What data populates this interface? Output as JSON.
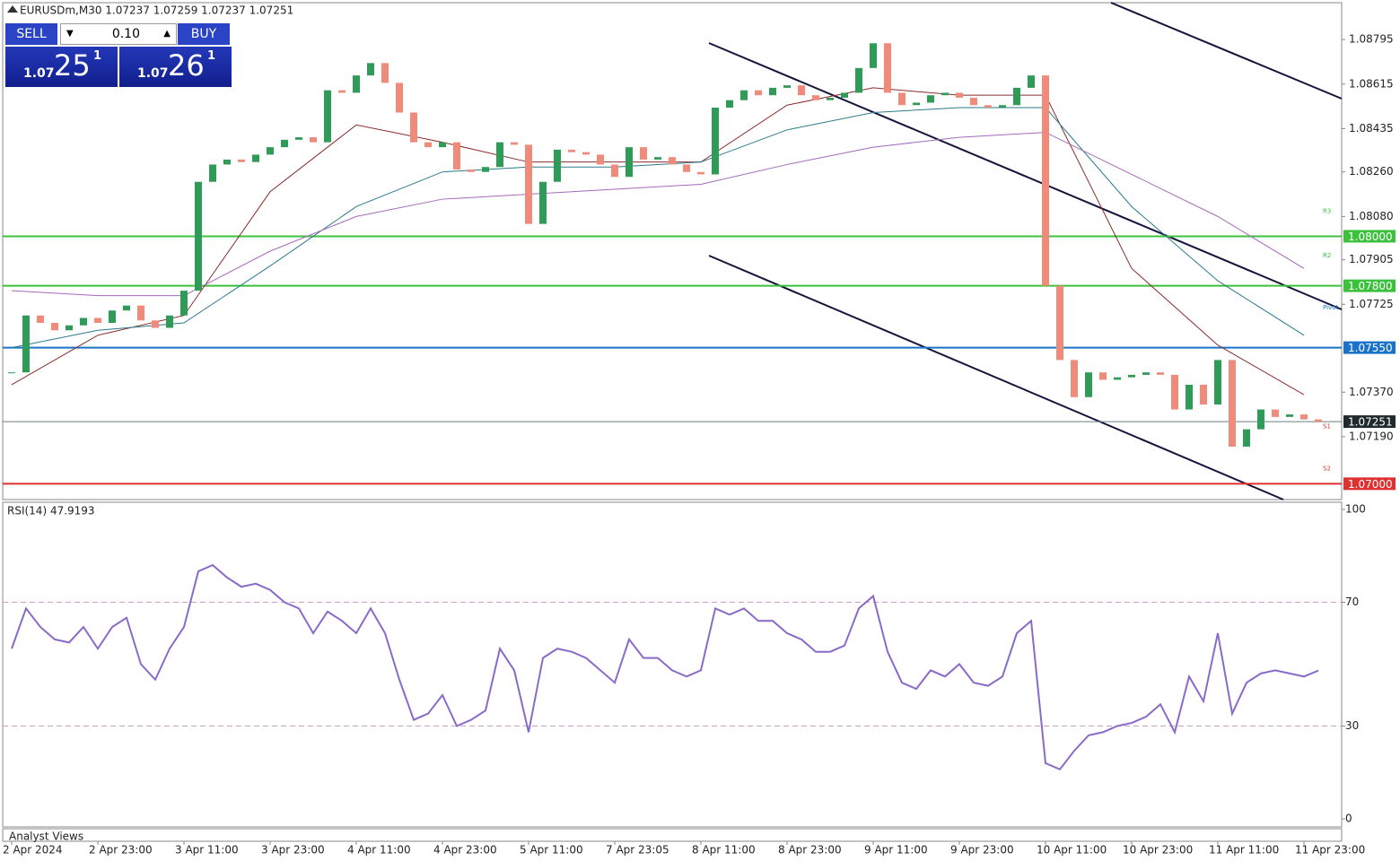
{
  "header": {
    "symbol_info": "EURUSDm,M30  1.07237 1.07259 1.07237 1.07251"
  },
  "trade_panel": {
    "sell": "SELL",
    "buy": "BUY",
    "lot": "0.10",
    "sell_price": {
      "small": "1.07",
      "big": "25",
      "sup": "1"
    },
    "buy_price": {
      "small": "1.07",
      "big": "26",
      "sup": "1"
    }
  },
  "footer": {
    "panel": "Analyst Views"
  },
  "chart_data": [
    {
      "type": "candlestick",
      "up_color": "#2e9c57",
      "down_color": "#f08a7a",
      "ylim": [
        1.06936,
        1.08944
      ],
      "yticks": [
        1.08795,
        1.08615,
        1.08435,
        {
          "value": 1.0826,
          "label": "1.08260"
        },
        {
          "value": 1.0808,
          "label": "1.08080"
        },
        1.07905,
        1.07725,
        {
          "value": 1.0737,
          "label": "1.07370"
        },
        {
          "value": 1.0719,
          "label": "1.07190"
        }
      ],
      "xticks": [
        {
          "value": 0,
          "label": "2 Apr 2024"
        },
        {
          "value": 6,
          "label": "2 Apr 23:00"
        },
        {
          "value": 12,
          "label": "3 Apr 11:00"
        },
        {
          "value": 18,
          "label": "3 Apr 23:00"
        },
        {
          "value": 24,
          "label": "4 Apr 11:00"
        },
        {
          "value": 30,
          "label": "4 Apr 23:00"
        },
        {
          "value": 36,
          "label": "5 Apr 11:00"
        },
        {
          "value": 42,
          "label": "7 Apr 23:05"
        },
        {
          "value": 48,
          "label": "8 Apr 11:00"
        },
        {
          "value": 54,
          "label": "8 Apr 23:00"
        },
        {
          "value": 60,
          "label": "9 Apr 11:00"
        },
        {
          "value": 66,
          "label": "9 Apr 23:00"
        },
        {
          "value": 72,
          "label": "10 Apr 11:00"
        },
        {
          "value": 78,
          "label": "10 Apr 23:00"
        },
        {
          "value": 84,
          "label": "11 Apr 11:00"
        },
        {
          "value": 90,
          "label": "11 Apr 23:00"
        }
      ],
      "close": [
        1.0745,
        1.0768,
        1.0765,
        1.0762,
        1.0764,
        1.0767,
        1.0765,
        1.077,
        1.0772,
        1.0766,
        1.0763,
        1.0768,
        1.0778,
        1.0822,
        1.0829,
        1.0831,
        1.083,
        1.0833,
        1.0836,
        1.0839,
        1.084,
        1.0838,
        1.0859,
        1.0858,
        1.0865,
        1.087,
        1.0862,
        1.085,
        1.0838,
        1.0836,
        1.0838,
        1.0827,
        1.0826,
        1.0828,
        1.0838,
        1.0837,
        1.0805,
        1.0822,
        1.0835,
        1.0834,
        1.0833,
        1.0829,
        1.0824,
        1.0836,
        1.0831,
        1.0832,
        1.0829,
        1.0826,
        1.0825,
        1.0852,
        1.0855,
        1.0859,
        1.0857,
        1.086,
        1.0861,
        1.0857,
        1.0855,
        1.0856,
        1.0858,
        1.0868,
        1.0878,
        1.0858,
        1.0853,
        1.0854,
        1.0857,
        1.0858,
        1.0856,
        1.0853,
        1.0852,
        1.0853,
        1.086,
        1.0865,
        1.078,
        1.075,
        1.0735,
        1.0745,
        1.0742,
        1.0743,
        1.0744,
        1.0745,
        1.0744,
        1.073,
        1.074,
        1.0732,
        1.075,
        1.0715,
        1.0722,
        1.073,
        1.0727,
        1.0728,
        1.0726,
        1.07251
      ],
      "series": [
        {
          "color": "#8b2c2c",
          "x": [
            0,
            6,
            12,
            18,
            24,
            30,
            36,
            42,
            48,
            54,
            60,
            66,
            72,
            78,
            84,
            90
          ],
          "values": [
            1.074,
            1.076,
            1.0768,
            1.0818,
            1.0845,
            1.0838,
            1.083,
            1.083,
            1.083,
            1.0853,
            1.086,
            1.0857,
            1.0857,
            1.0787,
            1.0756,
            1.0736
          ]
        },
        {
          "color": "#2b7a8c",
          "x": [
            0,
            6,
            12,
            18,
            24,
            30,
            36,
            42,
            48,
            54,
            60,
            66,
            72,
            78,
            84,
            90
          ],
          "values": [
            1.0755,
            1.0762,
            1.0765,
            1.0788,
            1.0812,
            1.0826,
            1.0828,
            1.0828,
            1.083,
            1.0843,
            1.085,
            1.0852,
            1.0852,
            1.0812,
            1.0782,
            1.076
          ]
        },
        {
          "color": "#a569bd",
          "x": [
            0,
            6,
            12,
            18,
            24,
            30,
            36,
            42,
            48,
            54,
            60,
            66,
            72,
            78,
            84,
            90
          ],
          "values": [
            1.0778,
            1.0776,
            1.0776,
            1.0794,
            1.0808,
            1.0815,
            1.0817,
            1.0819,
            1.0821,
            1.0829,
            1.0836,
            1.084,
            1.0842,
            1.0825,
            1.0808,
            1.0787
          ]
        }
      ],
      "levels": [
        {
          "value": 1.08,
          "label": "1.08000",
          "color": "#3cc13c"
        },
        {
          "value": 1.078,
          "label": "1.07800",
          "color": "#3cc13c"
        },
        {
          "value": 1.0755,
          "label": "1.07550",
          "color": "#1a73c8"
        },
        {
          "value": 1.07251,
          "color": "#6b7f82",
          "tag_color": "#1f2a2c"
        },
        {
          "value": 1.07,
          "label": "1.07000",
          "color": "#e03131"
        }
      ],
      "pivots": [
        {
          "label": "R3",
          "value": 1.0808,
          "color": "#3cc13c"
        },
        {
          "label": "R2",
          "value": 1.079,
          "color": "#3cc13c"
        },
        {
          "label": "Pivot",
          "value": 1.0769,
          "color": "#1a73c8"
        },
        {
          "label": "S1",
          "value": 1.0721,
          "color": "#e03131"
        },
        {
          "label": "S2",
          "value": 1.0704,
          "color": "#e03131"
        }
      ]
    },
    {
      "type": "line",
      "title": "RSI(14) 47.9193",
      "color": "#8a6ac8",
      "ylim": [
        0,
        100
      ],
      "yticks": [
        100,
        70,
        30,
        0
      ],
      "levels": [
        70,
        30
      ],
      "values": [
        55,
        68,
        62,
        58,
        57,
        62,
        55,
        62,
        65,
        50,
        45,
        55,
        62,
        80,
        82,
        78,
        75,
        76,
        74,
        70,
        68,
        60,
        67,
        64,
        60,
        68,
        60,
        45,
        32,
        34,
        40,
        30,
        32,
        35,
        55,
        48,
        28,
        52,
        55,
        54,
        52,
        48,
        44,
        58,
        52,
        52,
        48,
        46,
        48,
        68,
        66,
        68,
        64,
        64,
        60,
        58,
        54,
        54,
        56,
        68,
        72,
        54,
        44,
        42,
        48,
        46,
        50,
        44,
        43,
        46,
        60,
        64,
        18,
        16,
        22,
        27,
        28,
        30,
        31,
        33,
        37,
        28,
        46,
        38,
        60,
        34,
        44,
        47,
        48,
        47,
        46,
        47.9193
      ]
    }
  ]
}
